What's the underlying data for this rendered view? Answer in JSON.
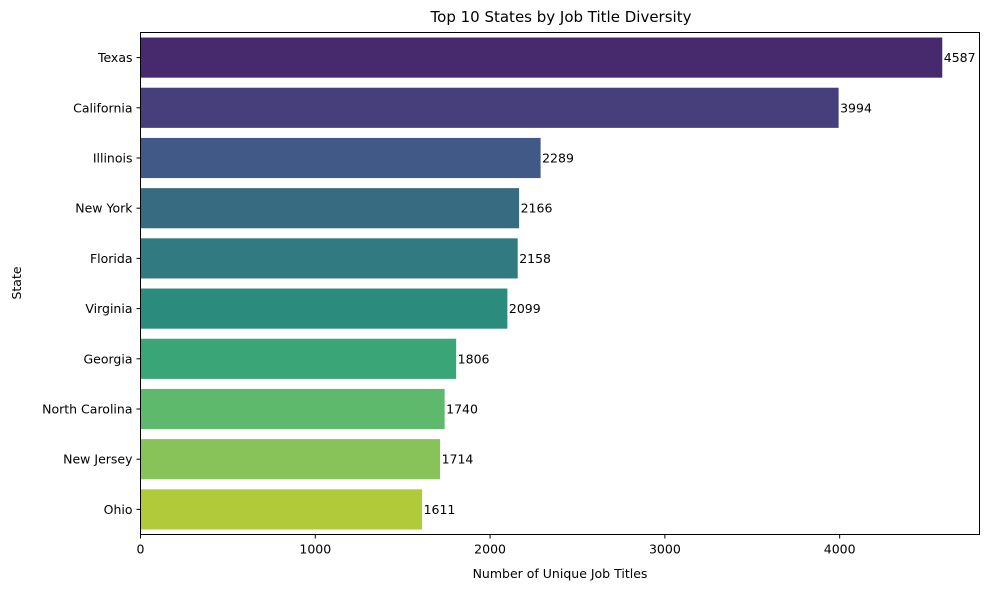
{
  "chart_data": {
    "type": "bar",
    "orientation": "horizontal",
    "title": "Top 10 States by Job Title Diversity",
    "xlabel": "Number of Unique Job Titles",
    "ylabel": "State",
    "categories": [
      "Texas",
      "California",
      "Illinois",
      "New York",
      "Florida",
      "Virginia",
      "Georgia",
      "North Carolina",
      "New Jersey",
      "Ohio"
    ],
    "values": [
      4587,
      3994,
      2289,
      2166,
      2158,
      2099,
      1806,
      1740,
      1714,
      1611
    ],
    "value_labels": [
      "4587",
      "3994",
      "2289",
      "2166",
      "2158",
      "2099",
      "1806",
      "1740",
      "1714",
      "1611"
    ],
    "colors": [
      "#472a6d",
      "#463f7c",
      "#415986",
      "#376b81",
      "#317a82",
      "#2b8c7e",
      "#3aa577",
      "#5fb96d",
      "#88c35a",
      "#b0ca39"
    ],
    "xlim": [
      0,
      4800
    ],
    "xticks": [
      0,
      1000,
      2000,
      3000,
      4000
    ],
    "xtick_labels": [
      "0",
      "1000",
      "2000",
      "3000",
      "4000"
    ],
    "grid": false,
    "legend": false
  }
}
